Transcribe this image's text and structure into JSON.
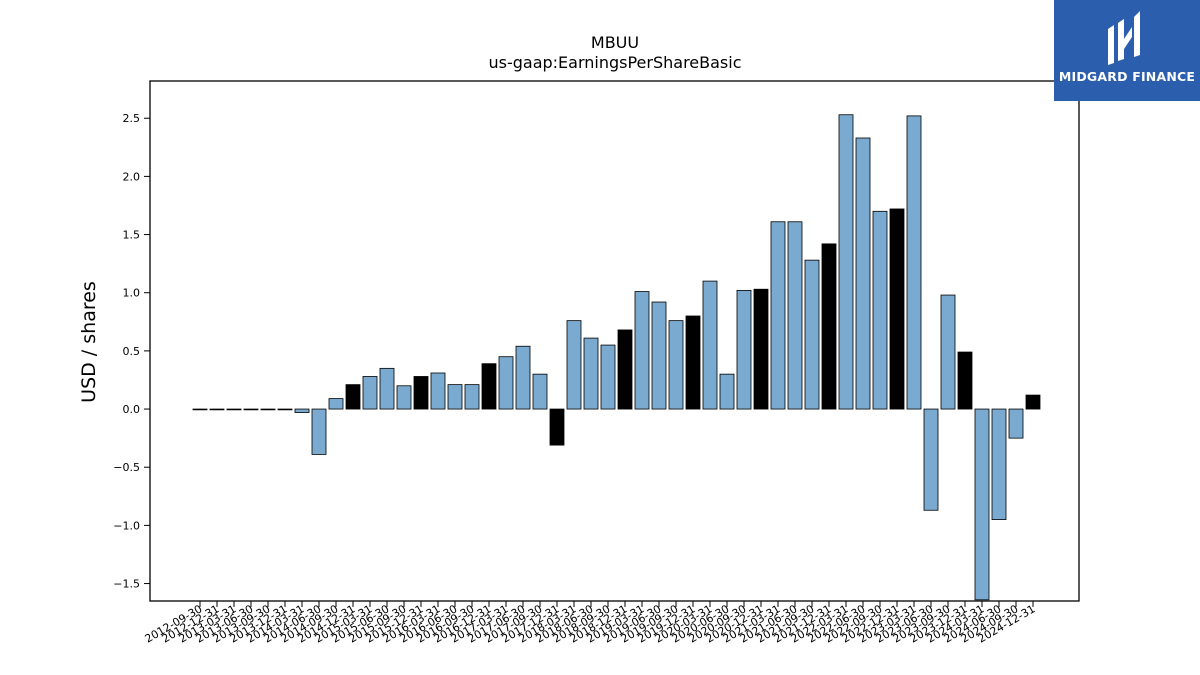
{
  "brand": {
    "name": "MIDGARD FINANCE",
    "background_color": "#2b5fad",
    "text_color": "#ffffff",
    "icon": "midgard-m-logo-icon"
  },
  "chart_data": {
    "type": "bar",
    "title": "MBUU",
    "subtitle": "us-gaap:EarningsPerShareBasic",
    "xlabel": "",
    "ylabel": "USD / shares",
    "ylim": [
      -1.65,
      2.82
    ],
    "yticks": [
      -1.5,
      -1.0,
      -0.5,
      0.0,
      0.5,
      1.0,
      1.5,
      2.0,
      2.5
    ],
    "ytick_labels": [
      "−1.5",
      "−1.0",
      "−0.5",
      "0.0",
      "0.5",
      "1.0",
      "1.5",
      "2.0",
      "2.5"
    ],
    "grid": false,
    "legend": "none",
    "colors": {
      "quarter": "#7aaad0",
      "fiscal_year_end": "#000000",
      "edge": "#000000"
    },
    "categories": [
      "2012-09-30",
      "2012-12-31",
      "2013-03-31",
      "2013-06-30",
      "2013-09-30",
      "2013-12-31",
      "2014-03-31",
      "2014-06-30",
      "2014-09-30",
      "2014-12-31",
      "2015-03-31",
      "2015-06-30",
      "2015-09-30",
      "2015-12-31",
      "2016-03-31",
      "2016-06-30",
      "2016-09-30",
      "2016-12-31",
      "2017-03-31",
      "2017-06-30",
      "2017-09-30",
      "2017-12-31",
      "2018-03-31",
      "2018-06-30",
      "2018-09-30",
      "2018-12-31",
      "2019-03-31",
      "2019-06-30",
      "2019-09-30",
      "2019-12-31",
      "2020-03-31",
      "2020-06-30",
      "2020-09-30",
      "2020-12-31",
      "2021-03-31",
      "2021-06-30",
      "2021-09-30",
      "2021-12-31",
      "2022-03-31",
      "2022-06-30",
      "2022-09-30",
      "2022-12-31",
      "2023-03-31",
      "2023-06-30",
      "2023-09-30",
      "2023-12-31",
      "2024-03-31",
      "2024-06-30",
      "2024-09-30",
      "2024-12-31"
    ],
    "values": [
      0.0,
      0.0,
      0.0,
      0.0,
      0.0,
      0.0,
      -0.03,
      -0.39,
      0.09,
      0.21,
      0.28,
      0.35,
      0.2,
      0.28,
      0.31,
      0.21,
      0.21,
      0.39,
      0.45,
      0.54,
      0.3,
      -0.31,
      0.76,
      0.61,
      0.55,
      0.68,
      1.01,
      0.92,
      0.76,
      0.8,
      1.1,
      0.3,
      1.02,
      1.03,
      1.61,
      1.61,
      1.28,
      1.42,
      2.53,
      2.33,
      1.7,
      1.72,
      2.52,
      -0.87,
      0.98,
      0.49,
      -1.64,
      -0.95,
      -0.25,
      0.12
    ],
    "highlight": [
      false,
      false,
      false,
      false,
      false,
      false,
      false,
      false,
      false,
      true,
      false,
      false,
      false,
      true,
      false,
      false,
      false,
      true,
      false,
      false,
      false,
      true,
      false,
      false,
      false,
      true,
      false,
      false,
      false,
      true,
      false,
      false,
      false,
      true,
      false,
      false,
      false,
      true,
      false,
      false,
      false,
      true,
      false,
      false,
      false,
      true,
      false,
      false,
      false,
      true
    ]
  }
}
